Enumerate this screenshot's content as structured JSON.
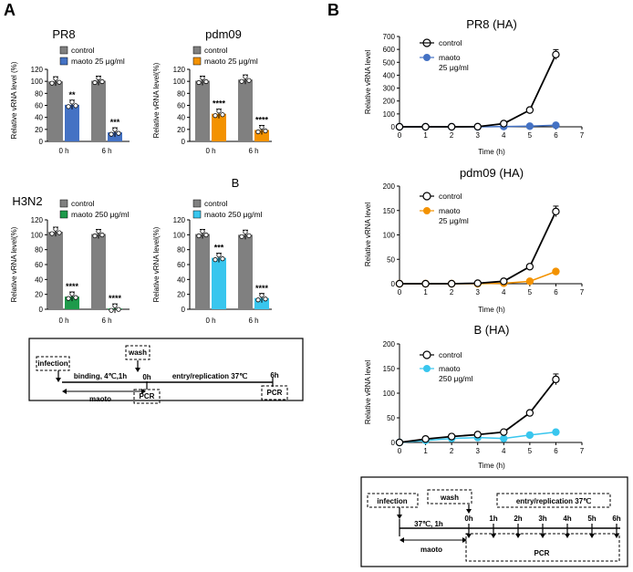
{
  "panels": {
    "a_label": "A",
    "b_label": "B"
  },
  "bar_charts": [
    {
      "id": "pr8",
      "title": "PR8",
      "ylabel": "Relative vRNA level (%)",
      "ylim": [
        0,
        120
      ],
      "yticks": [
        0,
        20,
        40,
        60,
        80,
        100,
        120
      ],
      "categories": [
        "0 h",
        "6 h"
      ],
      "legend_control": "control",
      "legend_treat": "maoto 25 μg/ml",
      "series": [
        {
          "name": "control",
          "values": [
            100,
            101
          ],
          "color": "#808080"
        },
        {
          "name": "maoto 25 μg/ml",
          "values": [
            61,
            15
          ],
          "color": "#4472c4"
        }
      ],
      "stars": [
        "**",
        "***"
      ]
    },
    {
      "id": "pdm09",
      "title": "pdm09",
      "ylabel": "Relative vRNA level(%)",
      "ylim": [
        0,
        120
      ],
      "yticks": [
        0,
        20,
        40,
        60,
        80,
        100,
        120
      ],
      "categories": [
        "0 h",
        "6 h"
      ],
      "legend_control": "control",
      "legend_treat": "maoto 25 μg/ml",
      "series": [
        {
          "name": "control",
          "values": [
            101,
            103
          ],
          "color": "#808080"
        },
        {
          "name": "maoto 25 μg/ml",
          "values": [
            46,
            19
          ],
          "color": "#f39200"
        }
      ],
      "stars": [
        "****",
        "****"
      ]
    },
    {
      "id": "h3n2",
      "title": "H3N2",
      "ylabel": "Relative vRNA level(%)",
      "ylim": [
        0,
        120
      ],
      "yticks": [
        0,
        20,
        40,
        60,
        80,
        100,
        120
      ],
      "categories": [
        "0 h",
        "6 h"
      ],
      "legend_control": "control",
      "legend_treat": "maoto 250 μg/ml",
      "series": [
        {
          "name": "control",
          "values": [
            104,
            101
          ],
          "color": "#808080"
        },
        {
          "name": "maoto 250 μg/ml",
          "values": [
            17,
            1
          ],
          "color": "#1e9a4b"
        }
      ],
      "stars": [
        "****",
        "****"
      ]
    },
    {
      "id": "b",
      "title": "B",
      "ylabel": "Relative vRNA level(%)",
      "ylim": [
        0,
        120
      ],
      "yticks": [
        0,
        20,
        40,
        60,
        80,
        100,
        120
      ],
      "categories": [
        "0 h",
        "6 h"
      ],
      "legend_control": "control",
      "legend_treat": "maoto 250 μg/ml",
      "series": [
        {
          "name": "control",
          "values": [
            101,
            100
          ],
          "color": "#808080"
        },
        {
          "name": "maoto 250 μg/ml",
          "values": [
            69,
            15
          ],
          "color": "#39c6ee"
        }
      ],
      "stars": [
        "***",
        "****"
      ]
    }
  ],
  "chart_data": [
    {
      "type": "line",
      "title": "PR8 (HA)",
      "xlabel": "Time (h)",
      "ylabel": "Relative vRNA level",
      "x": [
        0,
        1,
        2,
        3,
        4,
        5,
        6
      ],
      "xlim": [
        0,
        7
      ],
      "xticks": [
        0,
        1,
        2,
        3,
        4,
        5,
        6,
        7
      ],
      "ylim": [
        0,
        700
      ],
      "yticks": [
        0,
        100,
        200,
        300,
        400,
        500,
        600,
        700
      ],
      "series": [
        {
          "name": "control",
          "values": [
            0,
            0,
            0,
            1,
            25,
            130,
            560
          ],
          "color": "#000000"
        },
        {
          "name": "maoto 25 μg/ml",
          "values": [
            0,
            0,
            0,
            0,
            2,
            5,
            12
          ],
          "color": "#4472c4"
        }
      ],
      "legend_control": "control",
      "legend_treat_1": "maoto",
      "legend_treat_2": "25 μg/ml"
    },
    {
      "type": "line",
      "title": "pdm09 (HA)",
      "xlabel": "Time (h)",
      "ylabel": "Relative vRNA level",
      "x": [
        0,
        1,
        2,
        3,
        4,
        5,
        6
      ],
      "xlim": [
        0,
        7
      ],
      "xticks": [
        0,
        1,
        2,
        3,
        4,
        5,
        6,
        7
      ],
      "ylim": [
        0,
        200
      ],
      "yticks": [
        0,
        50,
        100,
        150,
        200
      ],
      "series": [
        {
          "name": "control",
          "values": [
            0,
            0,
            0,
            1,
            5,
            35,
            148
          ],
          "color": "#000000"
        },
        {
          "name": "maoto 25 μg/ml",
          "values": [
            0,
            0,
            0,
            0,
            1,
            5,
            25
          ],
          "color": "#f39200"
        }
      ],
      "legend_control": "control",
      "legend_treat_1": "maoto",
      "legend_treat_2": "25 μg/ml"
    },
    {
      "type": "line",
      "title": "B (HA)",
      "xlabel": "Time (h)",
      "ylabel": "Relative vRNA level",
      "x": [
        0,
        1,
        2,
        3,
        4,
        5,
        6
      ],
      "xlim": [
        0,
        7
      ],
      "xticks": [
        0,
        1,
        2,
        3,
        4,
        5,
        6,
        7
      ],
      "ylim": [
        0,
        200
      ],
      "yticks": [
        0,
        50,
        100,
        150,
        200
      ],
      "series": [
        {
          "name": "control",
          "values": [
            0,
            7,
            12,
            16,
            21,
            60,
            128
          ],
          "color": "#000000"
        },
        {
          "name": "maoto 250 μg/ml",
          "values": [
            0,
            4,
            8,
            10,
            8,
            15,
            21
          ],
          "color": "#39c6ee"
        }
      ],
      "legend_control": "control",
      "legend_treat_1": "maoto",
      "legend_treat_2": "250 μg/ml"
    }
  ],
  "scheme_a": {
    "infection": "infection",
    "wash": "wash",
    "time0": "0h",
    "time6": "6h",
    "binding": "binding, 4℃,1h",
    "entry": "entry/replication  37℃",
    "maoto": "maoto",
    "pcr1": "PCR",
    "pcr2": "PCR"
  },
  "scheme_b": {
    "infection": "infection",
    "wash": "wash",
    "entry": "entry/replication 37℃",
    "cond": "37℃, 1h",
    "maoto": "maoto",
    "pcr": "PCR",
    "times": [
      "0h",
      "1h",
      "2h",
      "3h",
      "4h",
      "5h",
      "6h"
    ]
  }
}
